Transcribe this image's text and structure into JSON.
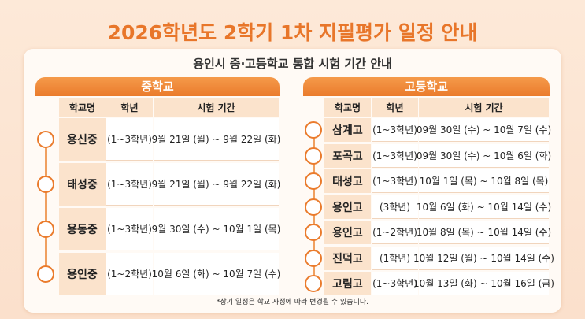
{
  "header": {
    "title": "2026학년도 2학기 1차 지필평가 일정 안내",
    "subtitle": "용인시 중·고등학교 통합 시험 기간 안내"
  },
  "middle": {
    "heading": "중학교",
    "columns": [
      "학교명",
      "학년",
      "시험 기간"
    ],
    "rows": [
      [
        "용신중",
        "(1~3학년)",
        "9월 21일 (월) ~ 9월 22일 (화)"
      ],
      [
        "태성중",
        "(1~3학년)",
        "9월 21일 (월) ~ 9월 22일 (화)"
      ],
      [
        "용동중",
        "(1~3학년)",
        "9월 30일 (수) ~ 10월 1일 (목)"
      ],
      [
        "용인중",
        "(1~2학년)",
        "10월 6일 (화) ~ 10월 7일 (수)"
      ]
    ]
  },
  "high": {
    "heading": "고등학교",
    "columns": [
      "학교명",
      "학년",
      "시험 기간"
    ],
    "rows": [
      [
        "삼계고",
        "(1~3학년)",
        "09월 30일 (수) ~ 10월 7일 (수)"
      ],
      [
        "포곡고",
        "(1~3학년)",
        "09월 30일 (수) ~ 10월 6일 (화)"
      ],
      [
        "태성고",
        "(1~3학년)",
        "10월 1일 (목) ~ 10월 8일 (목)"
      ],
      [
        "용인고",
        "(3학년)",
        "10월 6일 (화) ~ 10월 14일 (수)"
      ],
      [
        "용인고",
        "(1~2학년)",
        "10월 8일 (목) ~ 10월 14일 (수)"
      ],
      [
        "진덕고",
        "(1학년)",
        "10월 12일 (월) ~ 10월 14일 (수)"
      ],
      [
        "고림고",
        "(1~3학년)",
        "10월 13일 (화) ~ 10월 16일 (금)"
      ]
    ]
  },
  "footnote": "*상기 일정은 학교 사정에 따라 변경될 수 있습니다."
}
